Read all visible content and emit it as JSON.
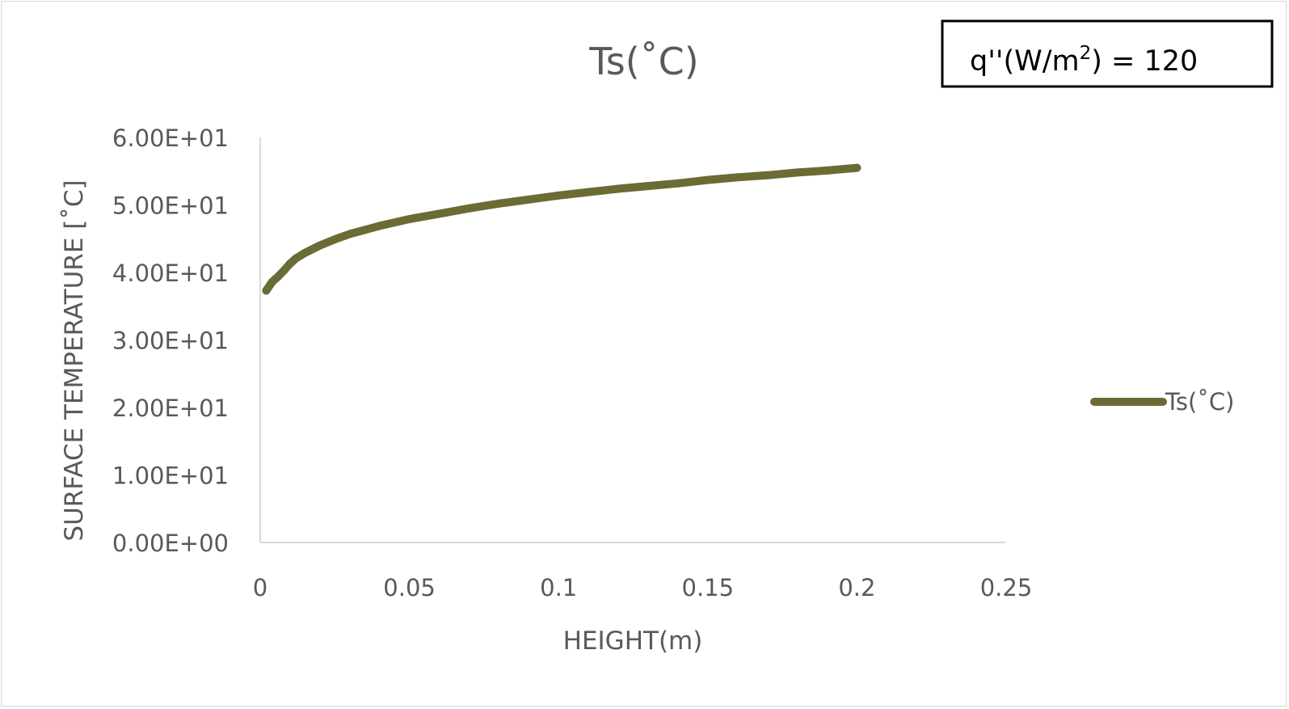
{
  "chart_data": {
    "type": "line",
    "title": "Ts(˚C)",
    "xlabel": "HEIGHT(m)",
    "ylabel": "SURFACE TEMPERATURE [˚C]",
    "xlim": [
      0,
      0.25
    ],
    "ylim": [
      0,
      60
    ],
    "x_ticks": [
      0,
      0.05,
      0.1,
      0.15,
      0.2,
      0.25
    ],
    "x_tick_labels": [
      "0",
      "0.05",
      "0.1",
      "0.15",
      "0.2",
      "0.25"
    ],
    "y_ticks": [
      0,
      10,
      20,
      30,
      40,
      50,
      60
    ],
    "y_tick_labels": [
      "0.00E+00",
      "1.00E+01",
      "2.00E+01",
      "3.00E+01",
      "4.00E+01",
      "5.00E+01",
      "6.00E+01"
    ],
    "grid": false,
    "legend_position": "right",
    "series": [
      {
        "name": "Ts(˚C)",
        "color": "#6b6b35",
        "x": [
          0.002,
          0.004,
          0.006,
          0.008,
          0.01,
          0.012,
          0.015,
          0.02,
          0.025,
          0.03,
          0.035,
          0.04,
          0.05,
          0.06,
          0.07,
          0.08,
          0.09,
          0.1,
          0.11,
          0.12,
          0.13,
          0.14,
          0.15,
          0.16,
          0.17,
          0.18,
          0.19,
          0.2
        ],
        "y": [
          37.3,
          38.6,
          39.4,
          40.3,
          41.3,
          42.1,
          42.9,
          44.0,
          44.9,
          45.7,
          46.3,
          46.9,
          47.9,
          48.7,
          49.5,
          50.2,
          50.8,
          51.4,
          51.9,
          52.4,
          52.8,
          53.2,
          53.7,
          54.1,
          54.4,
          54.8,
          55.1,
          55.5
        ]
      }
    ]
  },
  "annotation": {
    "prefix": "q''(W/m",
    "superscript": "2",
    "suffix": ") = 120"
  }
}
